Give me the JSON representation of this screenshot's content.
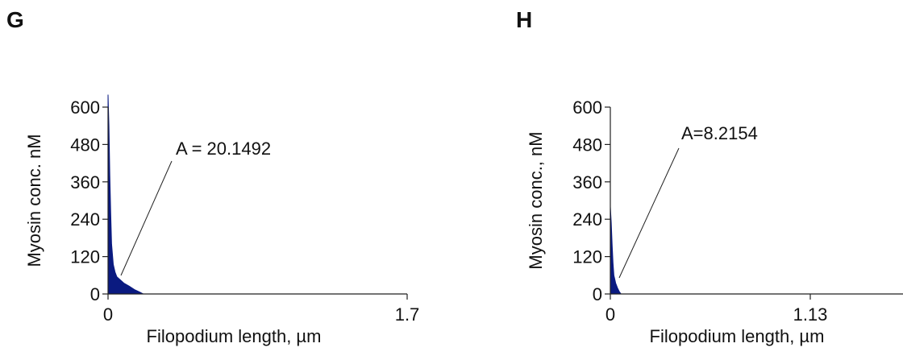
{
  "panels": [
    {
      "label": "G",
      "annotation": "A = 20.1492",
      "chart_data": {
        "type": "area",
        "title": "",
        "xlabel": "Filopodium length, µm",
        "ylabel": "Myosin conc. nM",
        "xlim": [
          0,
          1.7
        ],
        "ylim": [
          0,
          600
        ],
        "xticks": [
          "0",
          "1.7"
        ],
        "yticks": [
          "0",
          "120",
          "240",
          "360",
          "480",
          "600"
        ],
        "series": [
          {
            "x": [
              0,
              0.005,
              0.01,
              0.015,
              0.02,
              0.03,
              0.04,
              0.05,
              0.07,
              0.09,
              0.12,
              0.15,
              0.18,
              0.2
            ],
            "y": [
              640,
              540,
              380,
              260,
              160,
              95,
              70,
              55,
              45,
              35,
              25,
              14,
              6,
              0
            ]
          }
        ],
        "fill_color": "#0a1a80"
      }
    },
    {
      "label": "H",
      "annotation": "A=8.2154",
      "chart_data": {
        "type": "area",
        "title": "",
        "xlabel": "Filopodium length, µm",
        "ylabel": "Myosin conc., nM",
        "xlim": [
          0,
          1.13
        ],
        "ylim": [
          0,
          600
        ],
        "xticks": [
          "0",
          "1.13"
        ],
        "yticks": [
          "0",
          "120",
          "240",
          "360",
          "480",
          "600"
        ],
        "series": [
          {
            "x": [
              0,
              0.005,
              0.01,
              0.015,
              0.02,
              0.03,
              0.04,
              0.05,
              0.06
            ],
            "y": [
              280,
              230,
              160,
              100,
              60,
              35,
              20,
              8,
              0
            ]
          }
        ],
        "fill_color": "#0a1a80"
      }
    }
  ]
}
